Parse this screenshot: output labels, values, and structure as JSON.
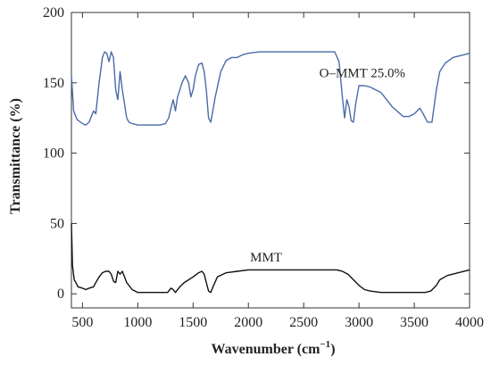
{
  "chart_data": {
    "type": "line",
    "xlabel": "Wavenumber (cm",
    "xlabel_sup": "−1",
    "xlabel_end": ")",
    "ylabel": "Transmittance (%)",
    "xlim": [
      400,
      4000
    ],
    "ylim": [
      -10,
      200
    ],
    "x_ticks": [
      500,
      1000,
      1500,
      2000,
      2500,
      3000,
      3500,
      4000
    ],
    "y_ticks": [
      0,
      50,
      100,
      150,
      200
    ],
    "grid": false,
    "series": [
      {
        "name": "O–MMT 25.0%",
        "color": "#4a6aa8",
        "points": [
          [
            400,
            155
          ],
          [
            420,
            130
          ],
          [
            450,
            124
          ],
          [
            500,
            121
          ],
          [
            530,
            120
          ],
          [
            560,
            122
          ],
          [
            600,
            130
          ],
          [
            620,
            128
          ],
          [
            650,
            150
          ],
          [
            680,
            168
          ],
          [
            700,
            172
          ],
          [
            720,
            171
          ],
          [
            740,
            165
          ],
          [
            760,
            172
          ],
          [
            780,
            168
          ],
          [
            800,
            145
          ],
          [
            820,
            138
          ],
          [
            840,
            158
          ],
          [
            860,
            145
          ],
          [
            880,
            135
          ],
          [
            900,
            125
          ],
          [
            920,
            122
          ],
          [
            950,
            121
          ],
          [
            1000,
            120
          ],
          [
            1100,
            120
          ],
          [
            1200,
            120
          ],
          [
            1250,
            121
          ],
          [
            1280,
            125
          ],
          [
            1300,
            132
          ],
          [
            1320,
            138
          ],
          [
            1340,
            130
          ],
          [
            1360,
            140
          ],
          [
            1380,
            145
          ],
          [
            1400,
            150
          ],
          [
            1430,
            155
          ],
          [
            1460,
            150
          ],
          [
            1480,
            140
          ],
          [
            1500,
            145
          ],
          [
            1520,
            155
          ],
          [
            1550,
            163
          ],
          [
            1580,
            164
          ],
          [
            1600,
            158
          ],
          [
            1620,
            145
          ],
          [
            1640,
            125
          ],
          [
            1660,
            122
          ],
          [
            1700,
            140
          ],
          [
            1750,
            158
          ],
          [
            1800,
            166
          ],
          [
            1850,
            168
          ],
          [
            1900,
            168
          ],
          [
            1950,
            170
          ],
          [
            2000,
            171
          ],
          [
            2100,
            172
          ],
          [
            2200,
            172
          ],
          [
            2300,
            172
          ],
          [
            2400,
            172
          ],
          [
            2500,
            172
          ],
          [
            2600,
            172
          ],
          [
            2700,
            172
          ],
          [
            2780,
            172
          ],
          [
            2820,
            165
          ],
          [
            2850,
            140
          ],
          [
            2870,
            125
          ],
          [
            2890,
            138
          ],
          [
            2910,
            133
          ],
          [
            2930,
            123
          ],
          [
            2950,
            122
          ],
          [
            2970,
            135
          ],
          [
            3000,
            148
          ],
          [
            3050,
            148
          ],
          [
            3100,
            147
          ],
          [
            3200,
            143
          ],
          [
            3300,
            133
          ],
          [
            3400,
            126
          ],
          [
            3450,
            126
          ],
          [
            3500,
            128
          ],
          [
            3550,
            132
          ],
          [
            3580,
            128
          ],
          [
            3620,
            122
          ],
          [
            3660,
            122
          ],
          [
            3700,
            145
          ],
          [
            3730,
            158
          ],
          [
            3780,
            164
          ],
          [
            3850,
            168
          ],
          [
            3950,
            170
          ],
          [
            4000,
            171
          ]
        ]
      },
      {
        "name": "MMT",
        "color": "#111111",
        "points": [
          [
            400,
            50
          ],
          [
            410,
            20
          ],
          [
            425,
            10
          ],
          [
            440,
            8
          ],
          [
            460,
            5
          ],
          [
            500,
            4
          ],
          [
            530,
            3
          ],
          [
            560,
            4
          ],
          [
            600,
            5
          ],
          [
            620,
            8
          ],
          [
            650,
            12
          ],
          [
            680,
            15
          ],
          [
            710,
            16
          ],
          [
            740,
            16
          ],
          [
            760,
            14
          ],
          [
            780,
            9
          ],
          [
            800,
            8
          ],
          [
            820,
            16
          ],
          [
            840,
            14
          ],
          [
            860,
            16
          ],
          [
            880,
            12
          ],
          [
            900,
            8
          ],
          [
            920,
            6
          ],
          [
            950,
            3
          ],
          [
            1000,
            1
          ],
          [
            1100,
            1
          ],
          [
            1200,
            1
          ],
          [
            1270,
            1
          ],
          [
            1300,
            4
          ],
          [
            1320,
            3
          ],
          [
            1340,
            1
          ],
          [
            1380,
            5
          ],
          [
            1420,
            8
          ],
          [
            1460,
            10
          ],
          [
            1500,
            12
          ],
          [
            1550,
            15
          ],
          [
            1580,
            16
          ],
          [
            1600,
            14
          ],
          [
            1620,
            8
          ],
          [
            1640,
            2
          ],
          [
            1660,
            1
          ],
          [
            1680,
            5
          ],
          [
            1720,
            12
          ],
          [
            1800,
            15
          ],
          [
            1900,
            16
          ],
          [
            2000,
            17
          ],
          [
            2100,
            17
          ],
          [
            2300,
            17
          ],
          [
            2500,
            17
          ],
          [
            2600,
            17
          ],
          [
            2700,
            17
          ],
          [
            2800,
            17
          ],
          [
            2850,
            16
          ],
          [
            2900,
            14
          ],
          [
            2950,
            10
          ],
          [
            3000,
            6
          ],
          [
            3050,
            3
          ],
          [
            3100,
            2
          ],
          [
            3200,
            1
          ],
          [
            3400,
            1
          ],
          [
            3600,
            1
          ],
          [
            3650,
            2
          ],
          [
            3700,
            6
          ],
          [
            3730,
            10
          ],
          [
            3800,
            13
          ],
          [
            3900,
            15
          ],
          [
            4000,
            17
          ]
        ]
      }
    ],
    "annotations": [
      {
        "text": "O–MMT 25.0%",
        "x": 3030,
        "y": 154
      },
      {
        "text": "MMT",
        "x": 2160,
        "y": 23
      }
    ]
  }
}
